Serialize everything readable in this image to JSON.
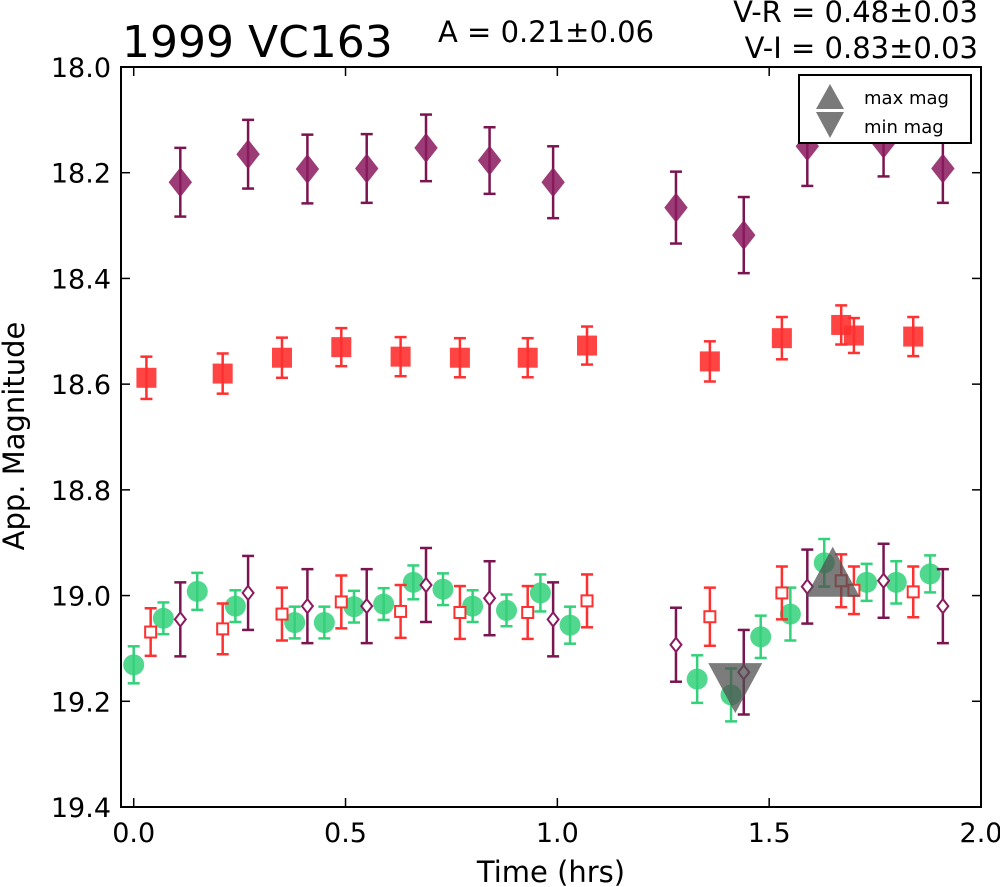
{
  "chart_data": {
    "type": "scatter",
    "title": "1999 VC163",
    "annotations": {
      "amplitude": "A  = 0.21±0.06",
      "color_vr": "V-R = 0.48±0.03",
      "color_vi": "V-I  = 0.83±0.03"
    },
    "xlabel": "Time (hrs)",
    "ylabel": "App. Magnitude",
    "xlim": [
      -0.03,
      2.0
    ],
    "ylim": [
      19.4,
      18.0
    ],
    "y_inverted": true,
    "xticks": [
      "0.0",
      "0.5",
      "1.0",
      "1.5",
      "2.0"
    ],
    "yticks": [
      "18.0",
      "18.2",
      "18.4",
      "18.6",
      "18.8",
      "19.0",
      "19.2",
      "19.4"
    ],
    "grid": false,
    "legend_position": "top-right",
    "legend": [
      {
        "label": "max mag",
        "marker": "triangle-up"
      },
      {
        "label": "min mag",
        "marker": "triangle-down"
      }
    ],
    "series": [
      {
        "role": "I",
        "marker": "diamond",
        "filled": true,
        "color": "#8b1a5e",
        "errcolor": "#7a1550",
        "points": [
          [
            0.11,
            18.218,
            0.065
          ],
          [
            0.27,
            18.165,
            0.065
          ],
          [
            0.41,
            18.193,
            0.065
          ],
          [
            0.55,
            18.192,
            0.065
          ],
          [
            0.69,
            18.153,
            0.063
          ],
          [
            0.84,
            18.177,
            0.063
          ],
          [
            0.99,
            18.218,
            0.068
          ],
          [
            1.28,
            18.266,
            0.068
          ],
          [
            1.44,
            18.318,
            0.072
          ],
          [
            1.59,
            18.15,
            0.075
          ],
          [
            1.77,
            18.145,
            0.062
          ],
          [
            1.91,
            18.192,
            0.065
          ]
        ]
      },
      {
        "role": "R",
        "marker": "square",
        "filled": true,
        "color": "#ff3030",
        "errcolor": "#ff3030",
        "points": [
          [
            0.03,
            18.588,
            0.04
          ],
          [
            0.21,
            18.58,
            0.038
          ],
          [
            0.35,
            18.55,
            0.038
          ],
          [
            0.49,
            18.53,
            0.036
          ],
          [
            0.63,
            18.548,
            0.037
          ],
          [
            0.77,
            18.55,
            0.037
          ],
          [
            0.93,
            18.55,
            0.037
          ],
          [
            1.07,
            18.527,
            0.036
          ],
          [
            1.36,
            18.557,
            0.038
          ],
          [
            1.53,
            18.513,
            0.04
          ],
          [
            1.67,
            18.488,
            0.037
          ],
          [
            1.7,
            18.508,
            0.033
          ],
          [
            1.84,
            18.51,
            0.037
          ]
        ]
      },
      {
        "role": "V",
        "marker": "circle",
        "filled": true,
        "color": "#33d17a",
        "errcolor": "#33d17a",
        "points": [
          [
            0.0,
            19.131,
            0.035
          ],
          [
            0.07,
            19.043,
            0.03
          ],
          [
            0.15,
            18.992,
            0.035
          ],
          [
            0.24,
            19.02,
            0.03
          ],
          [
            0.38,
            19.051,
            0.03
          ],
          [
            0.45,
            19.051,
            0.03
          ],
          [
            0.52,
            19.021,
            0.03
          ],
          [
            0.59,
            19.016,
            0.03
          ],
          [
            0.66,
            18.975,
            0.032
          ],
          [
            0.73,
            18.988,
            0.03
          ],
          [
            0.8,
            19.02,
            0.03
          ],
          [
            0.88,
            19.028,
            0.03
          ],
          [
            0.96,
            18.995,
            0.035
          ],
          [
            1.03,
            19.056,
            0.035
          ],
          [
            1.33,
            19.158,
            0.045
          ],
          [
            1.41,
            19.188,
            0.05
          ],
          [
            1.48,
            19.078,
            0.04
          ],
          [
            1.55,
            19.035,
            0.05
          ],
          [
            1.63,
            18.938,
            0.045
          ],
          [
            1.73,
            18.975,
            0.035
          ],
          [
            1.8,
            18.975,
            0.04
          ],
          [
            1.88,
            18.959,
            0.035
          ]
        ]
      },
      {
        "role": "R-shifted",
        "marker": "square",
        "filled": false,
        "color": "#ff3030",
        "errcolor": "#ff3030",
        "points": [
          [
            0.04,
            19.069,
            0.045
          ],
          [
            0.21,
            19.063,
            0.048
          ],
          [
            0.35,
            19.035,
            0.05
          ],
          [
            0.49,
            19.012,
            0.05
          ],
          [
            0.63,
            19.03,
            0.05
          ],
          [
            0.77,
            19.032,
            0.05
          ],
          [
            0.93,
            19.032,
            0.05
          ],
          [
            1.07,
            19.01,
            0.05
          ],
          [
            1.36,
            19.04,
            0.055
          ],
          [
            1.53,
            18.995,
            0.05
          ],
          [
            1.67,
            18.972,
            0.05
          ],
          [
            1.7,
            18.99,
            0.045
          ],
          [
            1.84,
            18.993,
            0.048
          ]
        ]
      },
      {
        "role": "I-shifted",
        "marker": "diamond",
        "filled": false,
        "color": "#8b1a5e",
        "errcolor": "#7a1550",
        "points": [
          [
            0.11,
            19.045,
            0.07
          ],
          [
            0.27,
            18.995,
            0.07
          ],
          [
            0.41,
            19.02,
            0.07
          ],
          [
            0.55,
            19.02,
            0.07
          ],
          [
            0.69,
            18.98,
            0.07
          ],
          [
            0.84,
            19.005,
            0.07
          ],
          [
            0.99,
            19.045,
            0.07
          ],
          [
            1.28,
            19.093,
            0.07
          ],
          [
            1.44,
            19.145,
            0.08
          ],
          [
            1.59,
            18.983,
            0.07
          ],
          [
            1.77,
            18.972,
            0.07
          ],
          [
            1.91,
            19.02,
            0.07
          ]
        ]
      }
    ],
    "extrema_markers": [
      {
        "type": "min",
        "x": 1.42,
        "y": 19.175
      },
      {
        "type": "max",
        "x": 1.65,
        "y": 18.955
      }
    ]
  }
}
